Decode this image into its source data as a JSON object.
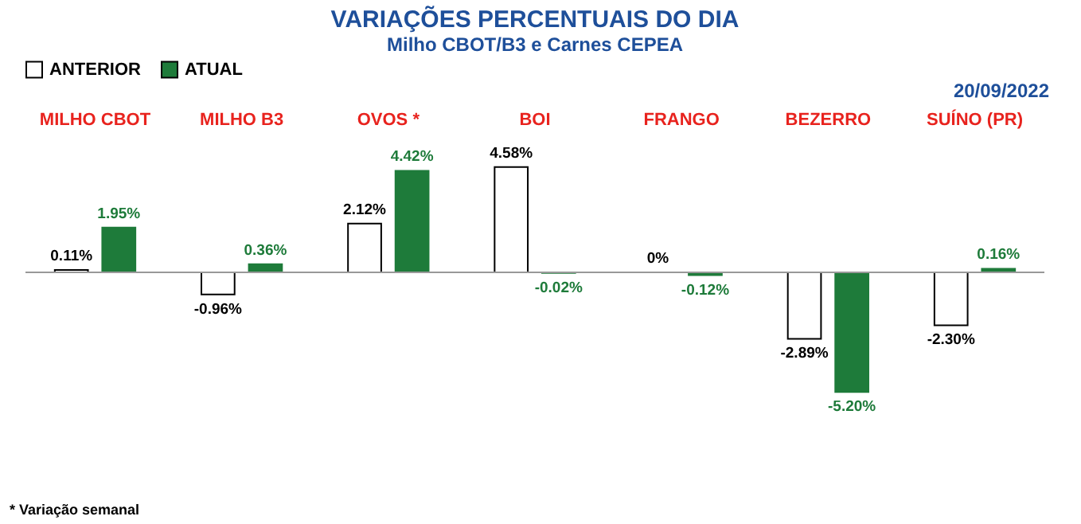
{
  "chart_data": {
    "type": "bar",
    "title": "VARIAÇÕES PERCENTUAIS DO DIA",
    "subtitle": "Milho CBOT/B3 e Carnes CEPEA",
    "categories": [
      "MILHO CBOT",
      "MILHO B3",
      "OVOS *",
      "BOI",
      "FRANGO",
      "BEZERRO",
      "SUÍNO (PR)"
    ],
    "series": [
      {
        "name": "ANTERIOR",
        "color": "#ffffff",
        "values": [
          0.11,
          -0.96,
          2.12,
          4.58,
          0,
          -2.89,
          -2.3
        ],
        "value_labels": [
          "0.11%",
          "-0.96%",
          "2.12%",
          "4.58%",
          "0%",
          "-2.89%",
          "-2.30%"
        ]
      },
      {
        "name": "ATUAL",
        "color": "#1e7b3a",
        "values": [
          1.95,
          0.36,
          4.42,
          -0.02,
          -0.12,
          -5.2,
          0.16
        ],
        "value_labels": [
          "1.95%",
          "0.36%",
          "4.42%",
          "-0.02%",
          "-0.12%",
          "-5.20%",
          "0.16%"
        ]
      }
    ],
    "legend": "top",
    "tick_labels": "x",
    "grid": false,
    "annotations": [
      "20/09/2022",
      "* Variação semanal"
    ]
  }
}
